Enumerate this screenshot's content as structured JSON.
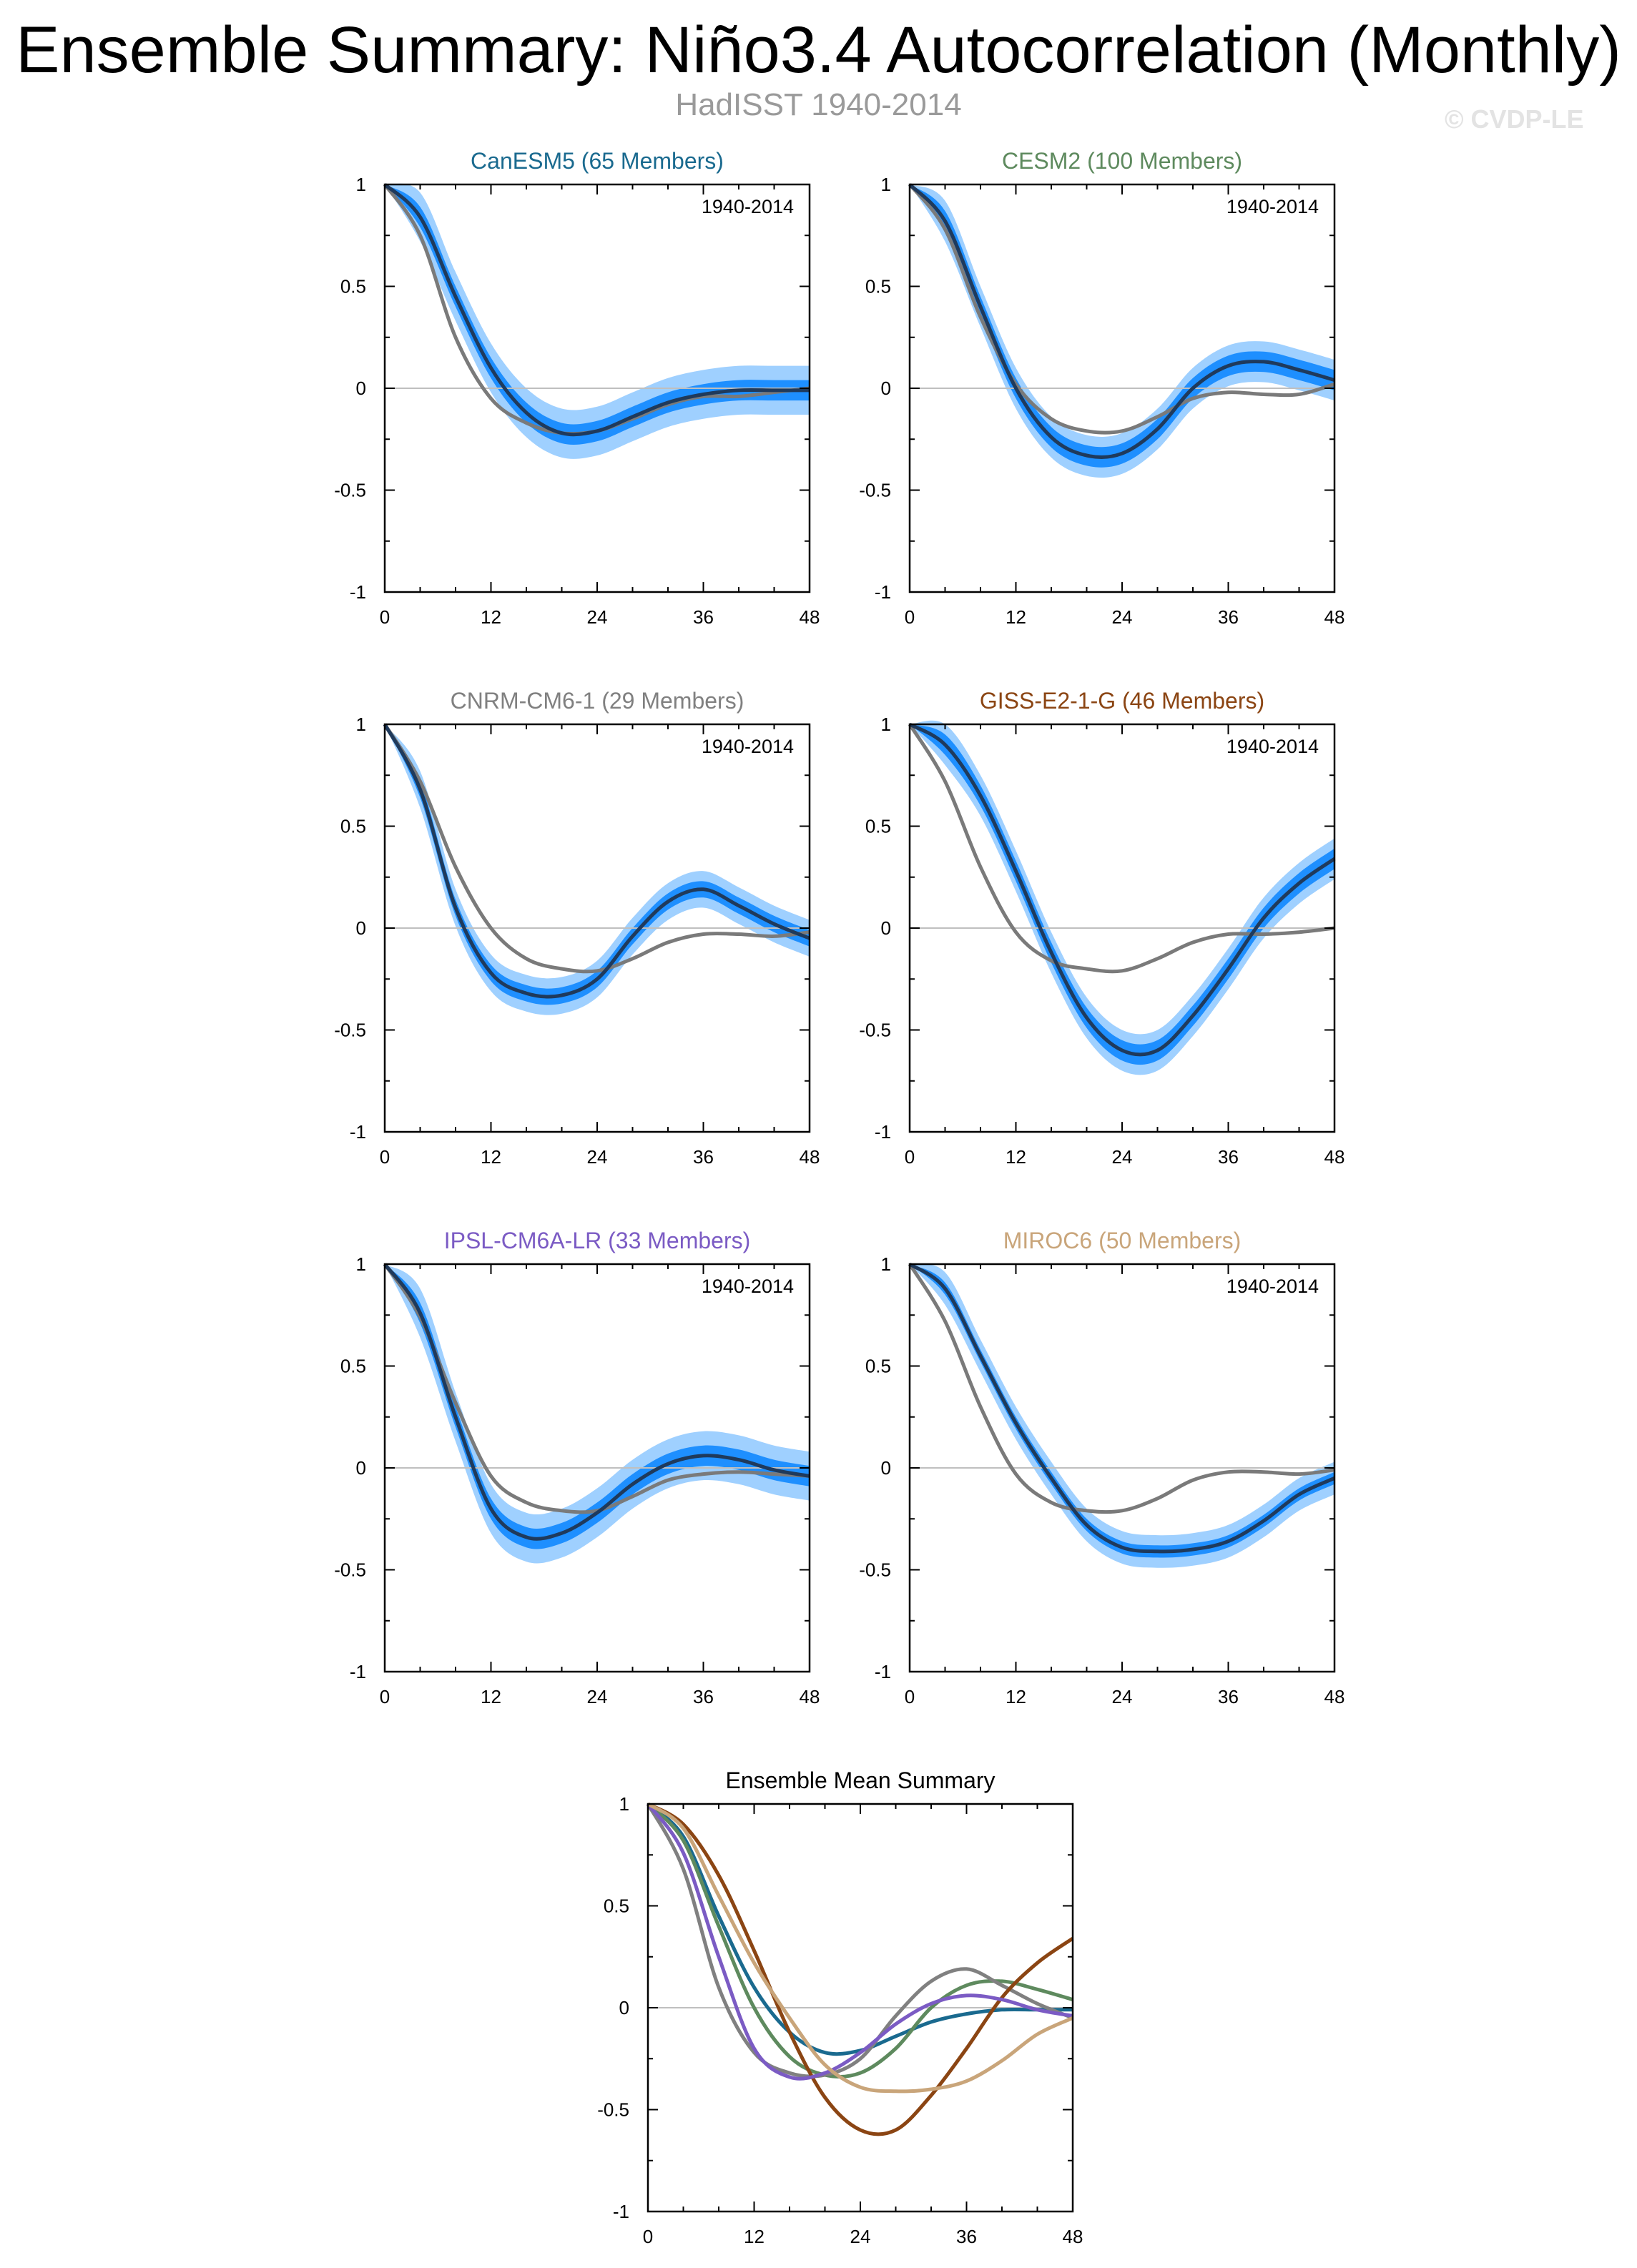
{
  "figure": {
    "title": "Ensemble Summary: Niño3.4 Autocorrelation (Monthly)",
    "subtitle": "HadISST 1940-2014",
    "credit": "© CVDP-LE"
  },
  "colors": {
    "observed": "#7a7a7a",
    "ensemble_mean": "#1f3a5c",
    "inner_spread": "#1e8fff",
    "outer_spread": "#9fd0ff",
    "zero_line": "#bfbfbf"
  },
  "chart_data": [
    {
      "type": "line",
      "title": "CanESM5 (65 Members)",
      "title_color": "#1a6a8f",
      "period_label": "1940-2014",
      "xlim": [
        0,
        48
      ],
      "ylim": [
        -1,
        1
      ],
      "xticks": [
        "0",
        "12",
        "24",
        "36",
        "48"
      ],
      "yticks": [
        "1",
        "0.5",
        "0",
        "-0.5",
        "-1"
      ],
      "x": [
        0,
        4,
        8,
        12,
        16,
        20,
        24,
        28,
        32,
        36,
        40,
        44,
        48
      ],
      "observed": [
        1.0,
        0.75,
        0.25,
        -0.05,
        -0.17,
        -0.22,
        -0.21,
        -0.15,
        -0.08,
        -0.04,
        -0.04,
        -0.02,
        0.0
      ],
      "mean": [
        1.0,
        0.84,
        0.45,
        0.1,
        -0.12,
        -0.22,
        -0.21,
        -0.14,
        -0.07,
        -0.03,
        -0.01,
        -0.01,
        -0.01
      ],
      "inner_spread": 0.05,
      "outer_spread": 0.12
    },
    {
      "type": "line",
      "title": "CESM2 (100 Members)",
      "title_color": "#5e8a5e",
      "period_label": "1940-2014",
      "xlim": [
        0,
        48
      ],
      "ylim": [
        -1,
        1
      ],
      "xticks": [
        "0",
        "12",
        "24",
        "36",
        "48"
      ],
      "yticks": [
        "1",
        "0.5",
        "0",
        "-0.5",
        "-1"
      ],
      "x": [
        0,
        4,
        8,
        12,
        16,
        20,
        24,
        28,
        32,
        36,
        40,
        44,
        48
      ],
      "observed": [
        1.0,
        0.78,
        0.35,
        0.02,
        -0.15,
        -0.21,
        -0.21,
        -0.14,
        -0.05,
        -0.02,
        -0.03,
        -0.03,
        0.02
      ],
      "mean": [
        1.0,
        0.82,
        0.4,
        0.0,
        -0.24,
        -0.33,
        -0.32,
        -0.2,
        0.0,
        0.11,
        0.13,
        0.09,
        0.04
      ],
      "inner_spread": 0.05,
      "outer_spread": 0.1
    },
    {
      "type": "line",
      "title": "CNRM-CM6-1 (29 Members)",
      "title_color": "#808080",
      "period_label": "1940-2014",
      "xlim": [
        0,
        48
      ],
      "ylim": [
        -1,
        1
      ],
      "xticks": [
        "0",
        "12",
        "24",
        "36",
        "48"
      ],
      "yticks": [
        "1",
        "0.5",
        "0",
        "-0.5",
        "-1"
      ],
      "x": [
        0,
        4,
        8,
        12,
        16,
        20,
        24,
        28,
        32,
        36,
        40,
        44,
        48
      ],
      "observed": [
        1.0,
        0.72,
        0.3,
        0.0,
        -0.15,
        -0.2,
        -0.21,
        -0.15,
        -0.07,
        -0.03,
        -0.03,
        -0.04,
        -0.02
      ],
      "mean": [
        1.0,
        0.68,
        0.1,
        -0.22,
        -0.32,
        -0.33,
        -0.25,
        -0.04,
        0.13,
        0.19,
        0.11,
        0.02,
        -0.05
      ],
      "inner_spread": 0.04,
      "outer_spread": 0.09
    },
    {
      "type": "line",
      "title": "GISS-E2-1-G (46 Members)",
      "title_color": "#8b4513",
      "period_label": "1940-2014",
      "xlim": [
        0,
        48
      ],
      "ylim": [
        -1,
        1
      ],
      "xticks": [
        "0",
        "12",
        "24",
        "36",
        "48"
      ],
      "yticks": [
        "1",
        "0.5",
        "0",
        "-0.5",
        "-1"
      ],
      "x": [
        0,
        4,
        8,
        12,
        16,
        20,
        24,
        28,
        32,
        36,
        40,
        44,
        48
      ],
      "observed": [
        1.0,
        0.72,
        0.3,
        -0.02,
        -0.16,
        -0.2,
        -0.21,
        -0.15,
        -0.07,
        -0.03,
        -0.03,
        -0.02,
        0.0
      ],
      "mean": [
        1.0,
        0.9,
        0.65,
        0.28,
        -0.12,
        -0.44,
        -0.6,
        -0.6,
        -0.43,
        -0.2,
        0.05,
        0.22,
        0.34
      ],
      "inner_spread": 0.05,
      "outer_spread": 0.1
    },
    {
      "type": "line",
      "title": "IPSL-CM6A-LR (33 Members)",
      "title_color": "#7b5bc4",
      "period_label": "1940-2014",
      "xlim": [
        0,
        48
      ],
      "ylim": [
        -1,
        1
      ],
      "xticks": [
        "0",
        "12",
        "24",
        "36",
        "48"
      ],
      "yticks": [
        "1",
        "0.5",
        "0",
        "-0.5",
        "-1"
      ],
      "x": [
        0,
        4,
        8,
        12,
        16,
        20,
        24,
        28,
        32,
        36,
        40,
        44,
        48
      ],
      "observed": [
        1.0,
        0.74,
        0.32,
        -0.04,
        -0.17,
        -0.21,
        -0.21,
        -0.14,
        -0.06,
        -0.03,
        -0.02,
        -0.03,
        -0.04
      ],
      "mean": [
        1.0,
        0.76,
        0.25,
        -0.2,
        -0.34,
        -0.32,
        -0.22,
        -0.08,
        0.02,
        0.06,
        0.04,
        -0.01,
        -0.04
      ],
      "inner_spread": 0.05,
      "outer_spread": 0.12
    },
    {
      "type": "line",
      "title": "MIROC6 (50 Members)",
      "title_color": "#c9a57a",
      "period_label": "1940-2014",
      "xlim": [
        0,
        48
      ],
      "ylim": [
        -1,
        1
      ],
      "xticks": [
        "0",
        "12",
        "24",
        "36",
        "48"
      ],
      "yticks": [
        "1",
        "0.5",
        "0",
        "-0.5",
        "-1"
      ],
      "x": [
        0,
        4,
        8,
        12,
        16,
        20,
        24,
        28,
        32,
        36,
        40,
        44,
        48
      ],
      "observed": [
        1.0,
        0.72,
        0.3,
        -0.03,
        -0.17,
        -0.21,
        -0.21,
        -0.15,
        -0.06,
        -0.02,
        -0.02,
        -0.03,
        -0.01
      ],
      "mean": [
        1.0,
        0.88,
        0.55,
        0.22,
        -0.05,
        -0.28,
        -0.39,
        -0.41,
        -0.4,
        -0.36,
        -0.26,
        -0.13,
        -0.05
      ],
      "inner_spread": 0.03,
      "outer_spread": 0.08
    },
    {
      "type": "line",
      "title": "Ensemble Mean Summary",
      "title_color": "#000000",
      "xlim": [
        0,
        48
      ],
      "ylim": [
        -1,
        1
      ],
      "xticks": [
        "0",
        "12",
        "24",
        "36",
        "48"
      ],
      "yticks": [
        "1",
        "0.5",
        "0",
        "-0.5",
        "-1"
      ],
      "x": [
        0,
        4,
        8,
        12,
        16,
        20,
        24,
        28,
        32,
        36,
        40,
        44,
        48
      ],
      "series": [
        {
          "name": "CanESM5",
          "color": "#1a6a8f",
          "values": [
            1.0,
            0.84,
            0.45,
            0.1,
            -0.12,
            -0.22,
            -0.21,
            -0.14,
            -0.07,
            -0.03,
            -0.01,
            -0.01,
            -0.01
          ]
        },
        {
          "name": "CESM2",
          "color": "#5e8a5e",
          "values": [
            1.0,
            0.82,
            0.4,
            0.0,
            -0.24,
            -0.33,
            -0.32,
            -0.2,
            0.0,
            0.11,
            0.13,
            0.09,
            0.04
          ]
        },
        {
          "name": "CNRM-CM6-1",
          "color": "#808080",
          "values": [
            1.0,
            0.68,
            0.1,
            -0.22,
            -0.32,
            -0.33,
            -0.25,
            -0.04,
            0.13,
            0.19,
            0.11,
            0.02,
            -0.05
          ]
        },
        {
          "name": "GISS-E2-1-G",
          "color": "#8b4513",
          "values": [
            1.0,
            0.9,
            0.65,
            0.28,
            -0.12,
            -0.44,
            -0.6,
            -0.6,
            -0.43,
            -0.2,
            0.05,
            0.22,
            0.34
          ]
        },
        {
          "name": "IPSL-CM6A-LR",
          "color": "#7b5bc4",
          "values": [
            1.0,
            0.76,
            0.25,
            -0.2,
            -0.34,
            -0.32,
            -0.22,
            -0.08,
            0.02,
            0.06,
            0.04,
            -0.01,
            -0.04
          ]
        },
        {
          "name": "MIROC6",
          "color": "#c9a57a",
          "values": [
            1.0,
            0.88,
            0.55,
            0.22,
            -0.05,
            -0.28,
            -0.39,
            -0.41,
            -0.4,
            -0.36,
            -0.26,
            -0.13,
            -0.05
          ]
        }
      ]
    }
  ]
}
